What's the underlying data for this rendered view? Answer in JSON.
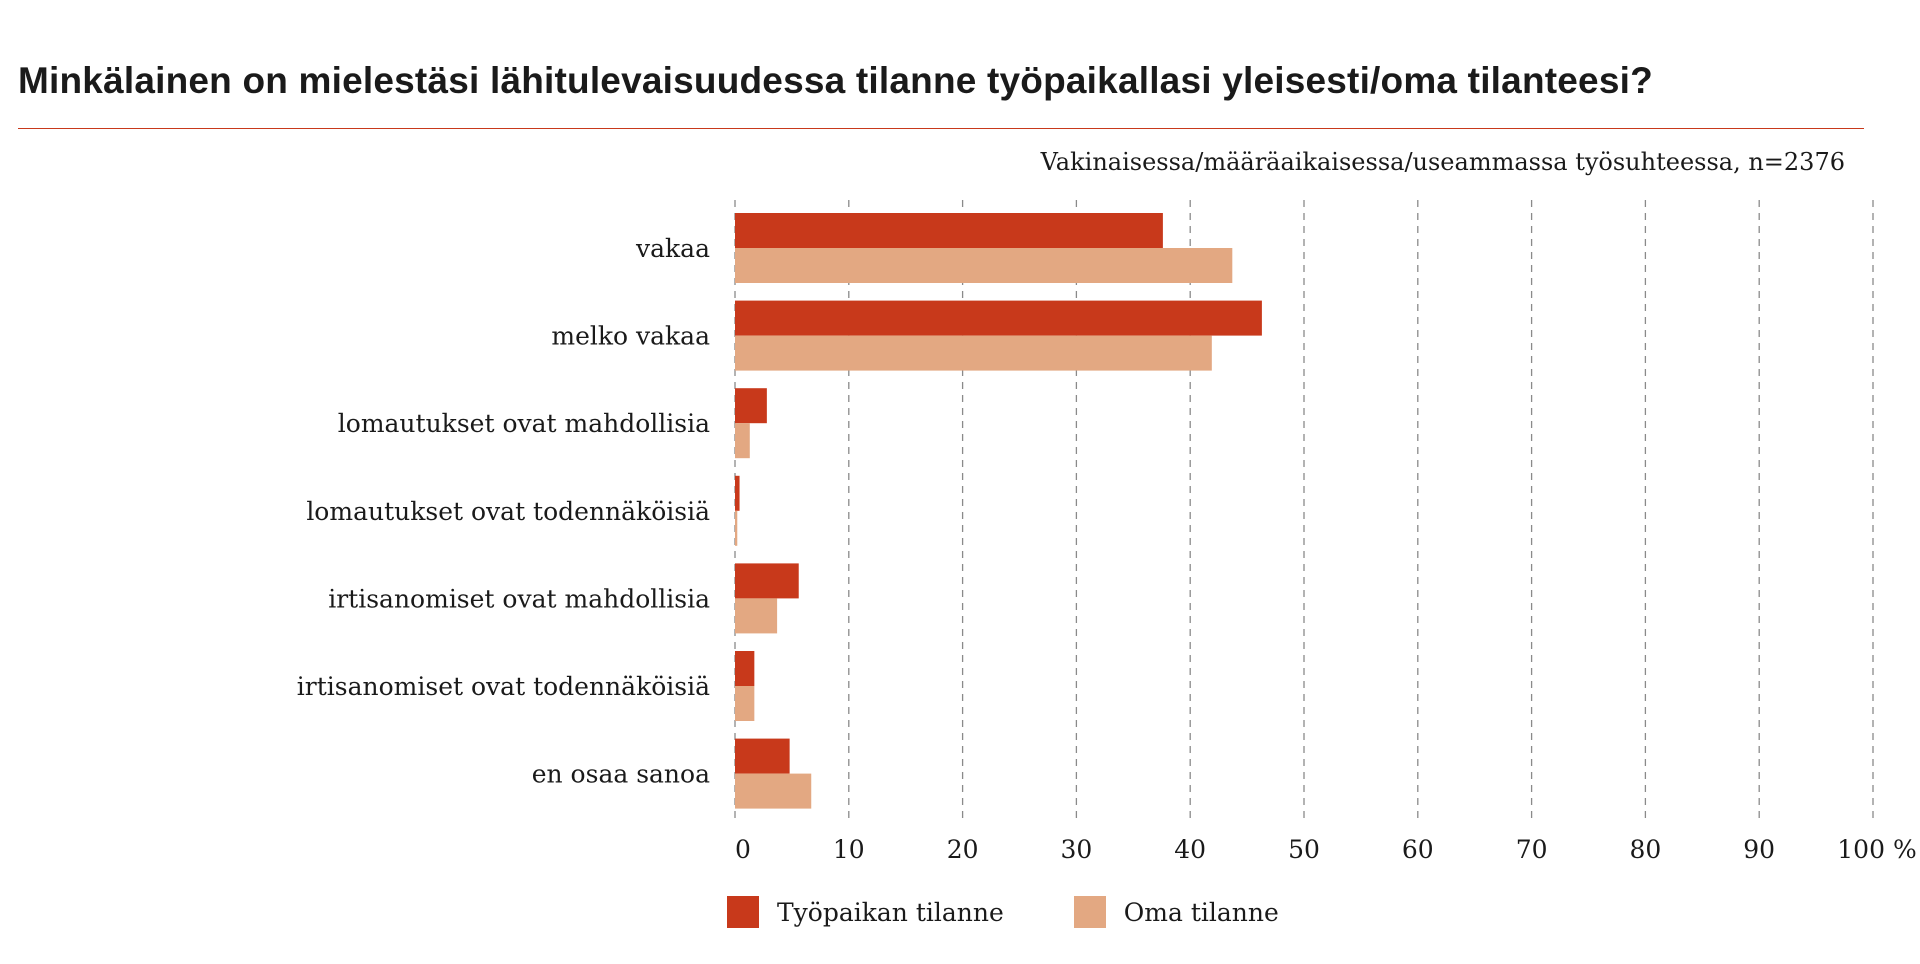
{
  "title": "Minkälainen on mielestäsi lähitulevaisuudessa tilanne työpaikallasi yleisesti/oma tilanteesi?",
  "subtitle": "Vakinaisessa/määräaikaisessa/useammassa työsuhteessa, n=2376",
  "chart_data": {
    "type": "bar",
    "orientation": "horizontal",
    "categories": [
      "vakaa",
      "melko vakaa",
      "lomautukset ovat mahdollisia",
      "lomautukset ovat todennäköisiä",
      "irtisanomiset ovat mahdollisia",
      "irtisanomiset ovat todennäköisiä",
      "en osaa sanoa"
    ],
    "series": [
      {
        "name": "Työpaikan tilanne",
        "color": "#c8391b",
        "values": [
          37.6,
          46.3,
          2.8,
          0.4,
          5.6,
          1.7,
          4.8
        ]
      },
      {
        "name": "Oma tilanne",
        "color": "#e3a882",
        "values": [
          43.7,
          41.9,
          1.3,
          0.2,
          3.7,
          1.7,
          6.7
        ]
      }
    ],
    "x_ticks": [
      "0",
      "10",
      "20",
      "30",
      "40",
      "50",
      "60",
      "70",
      "80",
      "90",
      "100 %"
    ],
    "xlim": [
      0,
      100
    ],
    "grid": "vertical dashed",
    "legend_position": "bottom"
  }
}
